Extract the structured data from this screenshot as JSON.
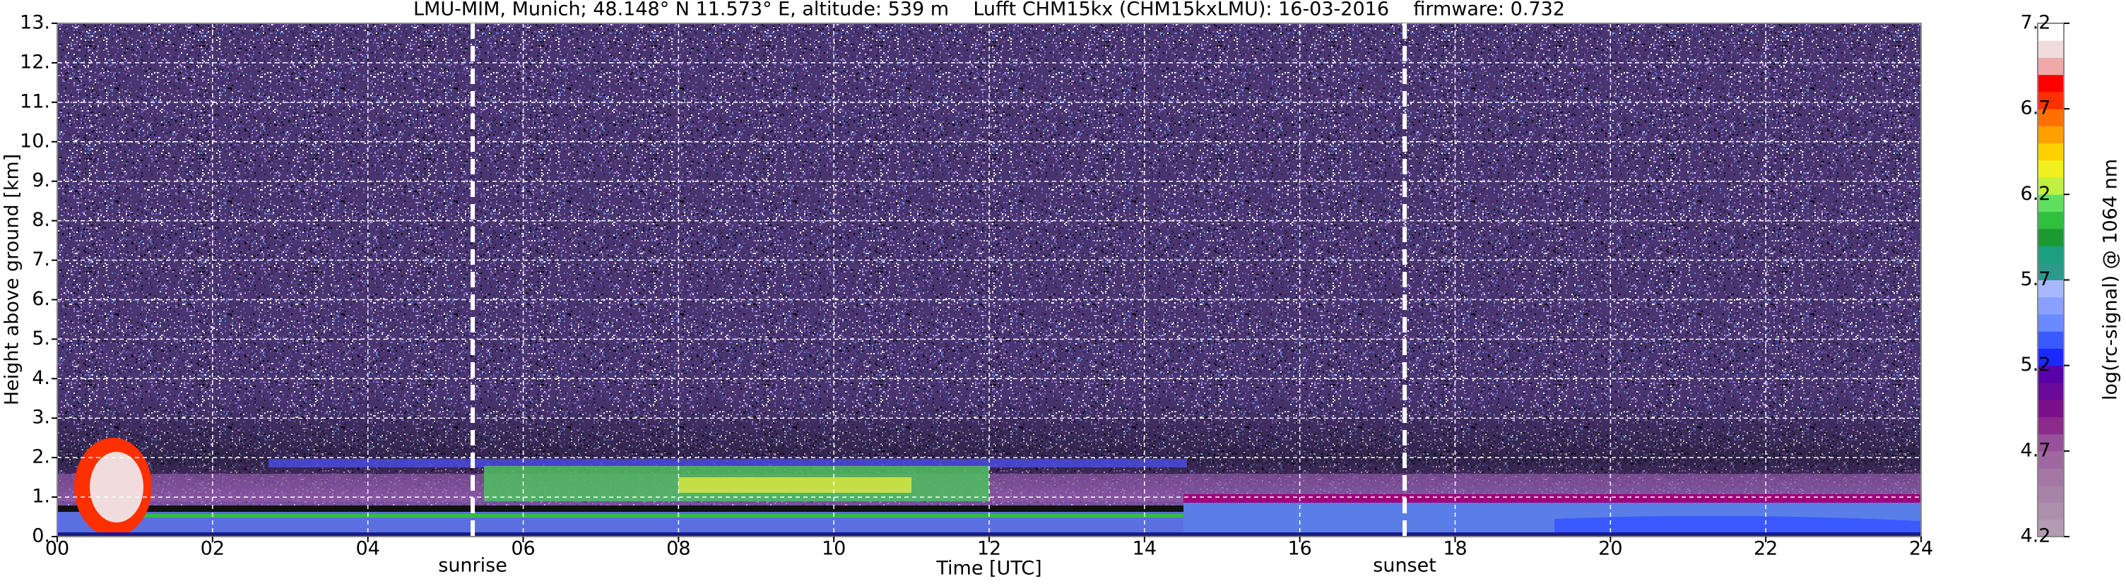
{
  "chart_data": {
    "type": "heatmap",
    "title": "LMU-MIM, Munich; 48.148° N 11.573° E, altitude: 539 m    Lufft CHM15kx (CHM15kxLMU): 16-03-2016    firmware: 0.732",
    "xlabel": "Time [UTC]",
    "ylabel": "Height above ground [km]",
    "xlim": [
      0,
      24
    ],
    "ylim": [
      0,
      13
    ],
    "xticks": [
      {
        "value": 0,
        "label": "00"
      },
      {
        "value": 2,
        "label": "02"
      },
      {
        "value": 4,
        "label": "04"
      },
      {
        "value": 6,
        "label": "06"
      },
      {
        "value": 8,
        "label": "08"
      },
      {
        "value": 10,
        "label": "10"
      },
      {
        "value": 12,
        "label": "12"
      },
      {
        "value": 14,
        "label": "14"
      },
      {
        "value": 16,
        "label": "16"
      },
      {
        "value": 18,
        "label": "18"
      },
      {
        "value": 20,
        "label": "20"
      },
      {
        "value": 22,
        "label": "22"
      },
      {
        "value": 24,
        "label": "24"
      }
    ],
    "yticks": [
      {
        "value": 0,
        "label": "0."
      },
      {
        "value": 1,
        "label": "1."
      },
      {
        "value": 2,
        "label": "2."
      },
      {
        "value": 3,
        "label": "3."
      },
      {
        "value": 4,
        "label": "4."
      },
      {
        "value": 5,
        "label": "5."
      },
      {
        "value": 6,
        "label": "6."
      },
      {
        "value": 7,
        "label": "7."
      },
      {
        "value": 8,
        "label": "8."
      },
      {
        "value": 9,
        "label": "9."
      },
      {
        "value": 10,
        "label": "10."
      },
      {
        "value": 11,
        "label": "11."
      },
      {
        "value": 12,
        "label": "12."
      },
      {
        "value": 13,
        "label": "13."
      }
    ],
    "grid": true,
    "annotations": [
      {
        "text": "sunrise",
        "x": 5.35
      },
      {
        "text": "sunset",
        "x": 17.35
      }
    ],
    "colorbar": {
      "label": "log(rc-signal) @ 1064 nm",
      "lim": [
        4.2,
        7.2
      ],
      "ticks": [
        4.2,
        4.7,
        5.2,
        5.7,
        6.2,
        6.7,
        7.2
      ],
      "colors": [
        "#b39bb3",
        "#ad90ad",
        "#a883a8",
        "#a476a4",
        "#a068a0",
        "#98509a",
        "#8a2a8a",
        "#7a108a",
        "#6a0a9a",
        "#5a00a8",
        "#1a2aff",
        "#3a5aff",
        "#6a8aff",
        "#8aa0ff",
        "#a8b8ff",
        "#2a9a8a",
        "#1aa080",
        "#1a9a30",
        "#30c040",
        "#60e060",
        "#c0f040",
        "#f0f020",
        "#ffd000",
        "#ffa000",
        "#ff7000",
        "#ff3000",
        "#ff0000",
        "#f0a8a8",
        "#f0dcdc",
        "#ffffff"
      ]
    }
  }
}
